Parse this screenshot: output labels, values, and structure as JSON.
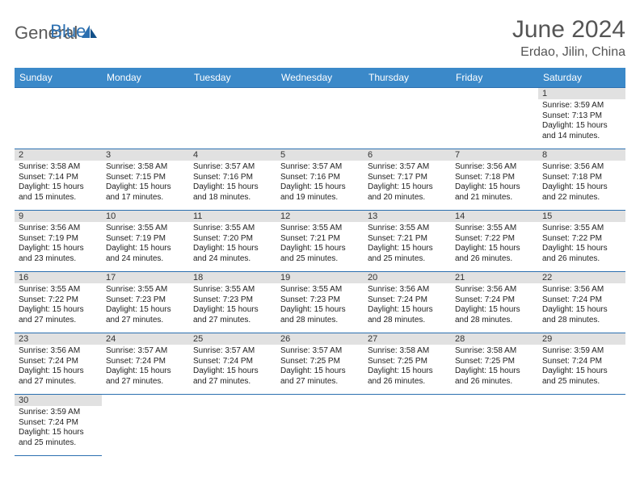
{
  "logo": {
    "general": "General",
    "blue": "Blue"
  },
  "title": "June 2024",
  "location": "Erdao, Jilin, China",
  "colors": {
    "header_bg": "#3b89c9",
    "header_border": "#2b6fb0",
    "daynum_bg": "#e1e1e1",
    "logo_gray": "#5a5a5a",
    "logo_blue": "#2b6fb0"
  },
  "weekdays": [
    "Sunday",
    "Monday",
    "Tuesday",
    "Wednesday",
    "Thursday",
    "Friday",
    "Saturday"
  ],
  "cells": [
    [
      {
        "n": "",
        "sr": "",
        "ss": "",
        "dl": ""
      },
      {
        "n": "",
        "sr": "",
        "ss": "",
        "dl": ""
      },
      {
        "n": "",
        "sr": "",
        "ss": "",
        "dl": ""
      },
      {
        "n": "",
        "sr": "",
        "ss": "",
        "dl": ""
      },
      {
        "n": "",
        "sr": "",
        "ss": "",
        "dl": ""
      },
      {
        "n": "",
        "sr": "",
        "ss": "",
        "dl": ""
      },
      {
        "n": "1",
        "sr": "Sunrise: 3:59 AM",
        "ss": "Sunset: 7:13 PM",
        "dl": "Daylight: 15 hours and 14 minutes."
      }
    ],
    [
      {
        "n": "2",
        "sr": "Sunrise: 3:58 AM",
        "ss": "Sunset: 7:14 PM",
        "dl": "Daylight: 15 hours and 15 minutes."
      },
      {
        "n": "3",
        "sr": "Sunrise: 3:58 AM",
        "ss": "Sunset: 7:15 PM",
        "dl": "Daylight: 15 hours and 17 minutes."
      },
      {
        "n": "4",
        "sr": "Sunrise: 3:57 AM",
        "ss": "Sunset: 7:16 PM",
        "dl": "Daylight: 15 hours and 18 minutes."
      },
      {
        "n": "5",
        "sr": "Sunrise: 3:57 AM",
        "ss": "Sunset: 7:16 PM",
        "dl": "Daylight: 15 hours and 19 minutes."
      },
      {
        "n": "6",
        "sr": "Sunrise: 3:57 AM",
        "ss": "Sunset: 7:17 PM",
        "dl": "Daylight: 15 hours and 20 minutes."
      },
      {
        "n": "7",
        "sr": "Sunrise: 3:56 AM",
        "ss": "Sunset: 7:18 PM",
        "dl": "Daylight: 15 hours and 21 minutes."
      },
      {
        "n": "8",
        "sr": "Sunrise: 3:56 AM",
        "ss": "Sunset: 7:18 PM",
        "dl": "Daylight: 15 hours and 22 minutes."
      }
    ],
    [
      {
        "n": "9",
        "sr": "Sunrise: 3:56 AM",
        "ss": "Sunset: 7:19 PM",
        "dl": "Daylight: 15 hours and 23 minutes."
      },
      {
        "n": "10",
        "sr": "Sunrise: 3:55 AM",
        "ss": "Sunset: 7:19 PM",
        "dl": "Daylight: 15 hours and 24 minutes."
      },
      {
        "n": "11",
        "sr": "Sunrise: 3:55 AM",
        "ss": "Sunset: 7:20 PM",
        "dl": "Daylight: 15 hours and 24 minutes."
      },
      {
        "n": "12",
        "sr": "Sunrise: 3:55 AM",
        "ss": "Sunset: 7:21 PM",
        "dl": "Daylight: 15 hours and 25 minutes."
      },
      {
        "n": "13",
        "sr": "Sunrise: 3:55 AM",
        "ss": "Sunset: 7:21 PM",
        "dl": "Daylight: 15 hours and 25 minutes."
      },
      {
        "n": "14",
        "sr": "Sunrise: 3:55 AM",
        "ss": "Sunset: 7:22 PM",
        "dl": "Daylight: 15 hours and 26 minutes."
      },
      {
        "n": "15",
        "sr": "Sunrise: 3:55 AM",
        "ss": "Sunset: 7:22 PM",
        "dl": "Daylight: 15 hours and 26 minutes."
      }
    ],
    [
      {
        "n": "16",
        "sr": "Sunrise: 3:55 AM",
        "ss": "Sunset: 7:22 PM",
        "dl": "Daylight: 15 hours and 27 minutes."
      },
      {
        "n": "17",
        "sr": "Sunrise: 3:55 AM",
        "ss": "Sunset: 7:23 PM",
        "dl": "Daylight: 15 hours and 27 minutes."
      },
      {
        "n": "18",
        "sr": "Sunrise: 3:55 AM",
        "ss": "Sunset: 7:23 PM",
        "dl": "Daylight: 15 hours and 27 minutes."
      },
      {
        "n": "19",
        "sr": "Sunrise: 3:55 AM",
        "ss": "Sunset: 7:23 PM",
        "dl": "Daylight: 15 hours and 28 minutes."
      },
      {
        "n": "20",
        "sr": "Sunrise: 3:56 AM",
        "ss": "Sunset: 7:24 PM",
        "dl": "Daylight: 15 hours and 28 minutes."
      },
      {
        "n": "21",
        "sr": "Sunrise: 3:56 AM",
        "ss": "Sunset: 7:24 PM",
        "dl": "Daylight: 15 hours and 28 minutes."
      },
      {
        "n": "22",
        "sr": "Sunrise: 3:56 AM",
        "ss": "Sunset: 7:24 PM",
        "dl": "Daylight: 15 hours and 28 minutes."
      }
    ],
    [
      {
        "n": "23",
        "sr": "Sunrise: 3:56 AM",
        "ss": "Sunset: 7:24 PM",
        "dl": "Daylight: 15 hours and 27 minutes."
      },
      {
        "n": "24",
        "sr": "Sunrise: 3:57 AM",
        "ss": "Sunset: 7:24 PM",
        "dl": "Daylight: 15 hours and 27 minutes."
      },
      {
        "n": "25",
        "sr": "Sunrise: 3:57 AM",
        "ss": "Sunset: 7:24 PM",
        "dl": "Daylight: 15 hours and 27 minutes."
      },
      {
        "n": "26",
        "sr": "Sunrise: 3:57 AM",
        "ss": "Sunset: 7:25 PM",
        "dl": "Daylight: 15 hours and 27 minutes."
      },
      {
        "n": "27",
        "sr": "Sunrise: 3:58 AM",
        "ss": "Sunset: 7:25 PM",
        "dl": "Daylight: 15 hours and 26 minutes."
      },
      {
        "n": "28",
        "sr": "Sunrise: 3:58 AM",
        "ss": "Sunset: 7:25 PM",
        "dl": "Daylight: 15 hours and 26 minutes."
      },
      {
        "n": "29",
        "sr": "Sunrise: 3:59 AM",
        "ss": "Sunset: 7:24 PM",
        "dl": "Daylight: 15 hours and 25 minutes."
      }
    ],
    [
      {
        "n": "30",
        "sr": "Sunrise: 3:59 AM",
        "ss": "Sunset: 7:24 PM",
        "dl": "Daylight: 15 hours and 25 minutes."
      },
      {
        "n": "",
        "sr": "",
        "ss": "",
        "dl": ""
      },
      {
        "n": "",
        "sr": "",
        "ss": "",
        "dl": ""
      },
      {
        "n": "",
        "sr": "",
        "ss": "",
        "dl": ""
      },
      {
        "n": "",
        "sr": "",
        "ss": "",
        "dl": ""
      },
      {
        "n": "",
        "sr": "",
        "ss": "",
        "dl": ""
      },
      {
        "n": "",
        "sr": "",
        "ss": "",
        "dl": ""
      }
    ]
  ]
}
